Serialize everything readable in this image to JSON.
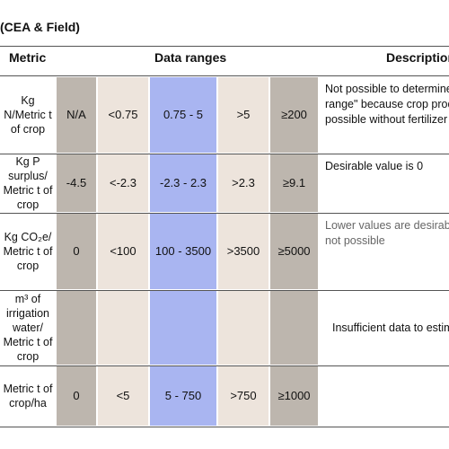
{
  "title": "(CEA & Field)",
  "header": {
    "metric": "Metric",
    "ranges": "Data ranges",
    "description": "Description"
  },
  "rows": [
    {
      "metric": "Kg N/Metric t of crop",
      "ranges": [
        "N/A",
        "<0.75",
        "0.75 - 5",
        ">5",
        "≥200"
      ],
      "description": [
        "Not possible to determine",
        "range\" because crop prod",
        "possible without fertilizer"
      ]
    },
    {
      "metric": "Kg P surplus/ Metric t of crop",
      "ranges": [
        "-4.5",
        "<-2.3",
        "-2.3 - 2.3",
        ">2.3",
        "≥9.1"
      ],
      "description": [
        "Desirable value is 0"
      ]
    },
    {
      "metric": "Kg CO₂e/ Metric t of crop",
      "ranges": [
        "0",
        "<100",
        "100 - 3500",
        ">3500",
        "≥5000"
      ],
      "description": [
        "Lower values are desirab",
        "not possible"
      ]
    },
    {
      "metric": "m³ of irrigation water/ Metric t of crop",
      "ranges": [
        null,
        null,
        null,
        null,
        null
      ],
      "description": [
        "Insufficient data to estim"
      ]
    },
    {
      "metric": "Metric t of crop/ha",
      "ranges": [
        "0",
        "<5",
        "5 - 750",
        ">750",
        "≥1000"
      ],
      "description": []
    }
  ]
}
